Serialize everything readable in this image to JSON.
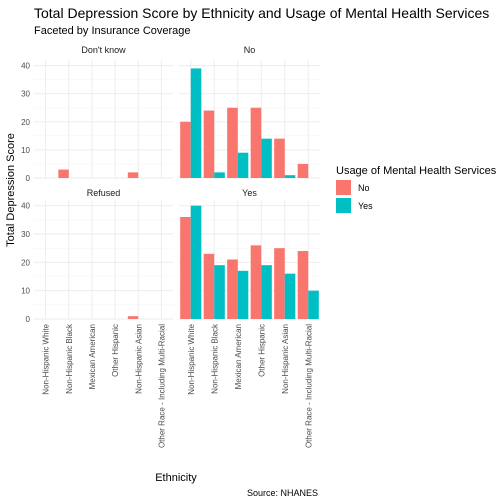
{
  "chart_data": {
    "type": "bar",
    "title": "Total Depression Score by Ethnicity and Usage of Mental Health Services",
    "subtitle": "Faceted by Insurance Coverage",
    "xlabel": "Ethnicity",
    "ylabel": "Total Depression Score",
    "caption": "Source: NHANES",
    "ylim": [
      0,
      42
    ],
    "yticks": [
      0,
      10,
      20,
      30,
      40
    ],
    "grid": true,
    "legend": {
      "title": "Usage of Mental Health Services",
      "placement": "right",
      "entries": [
        {
          "label": "No",
          "color": "#F8766D"
        },
        {
          "label": "Yes",
          "color": "#00BFC4"
        }
      ]
    },
    "categories": [
      "Non-Hispanic White",
      "Non-Hispanic Black",
      "Mexican American",
      "Other Hispanic",
      "Non-Hispanic Asian",
      "Other Race - Including Multi-Racial"
    ],
    "facets": [
      {
        "label": "Don't know",
        "series": [
          {
            "name": "No",
            "values": [
              null,
              3,
              null,
              null,
              2,
              null
            ]
          },
          {
            "name": "Yes",
            "values": [
              null,
              null,
              null,
              null,
              null,
              null
            ]
          }
        ]
      },
      {
        "label": "No",
        "series": [
          {
            "name": "No",
            "values": [
              20,
              24,
              25,
              25,
              14,
              5
            ]
          },
          {
            "name": "Yes",
            "values": [
              39,
              2,
              9,
              14,
              1,
              null
            ]
          }
        ]
      },
      {
        "label": "Refused",
        "series": [
          {
            "name": "No",
            "values": [
              null,
              null,
              null,
              null,
              1,
              null
            ]
          },
          {
            "name": "Yes",
            "values": [
              null,
              null,
              null,
              null,
              null,
              null
            ]
          }
        ]
      },
      {
        "label": "Yes",
        "series": [
          {
            "name": "No",
            "values": [
              36,
              23,
              21,
              26,
              25,
              24
            ]
          },
          {
            "name": "Yes",
            "values": [
              40,
              19,
              17,
              19,
              16,
              10
            ]
          }
        ]
      }
    ]
  }
}
